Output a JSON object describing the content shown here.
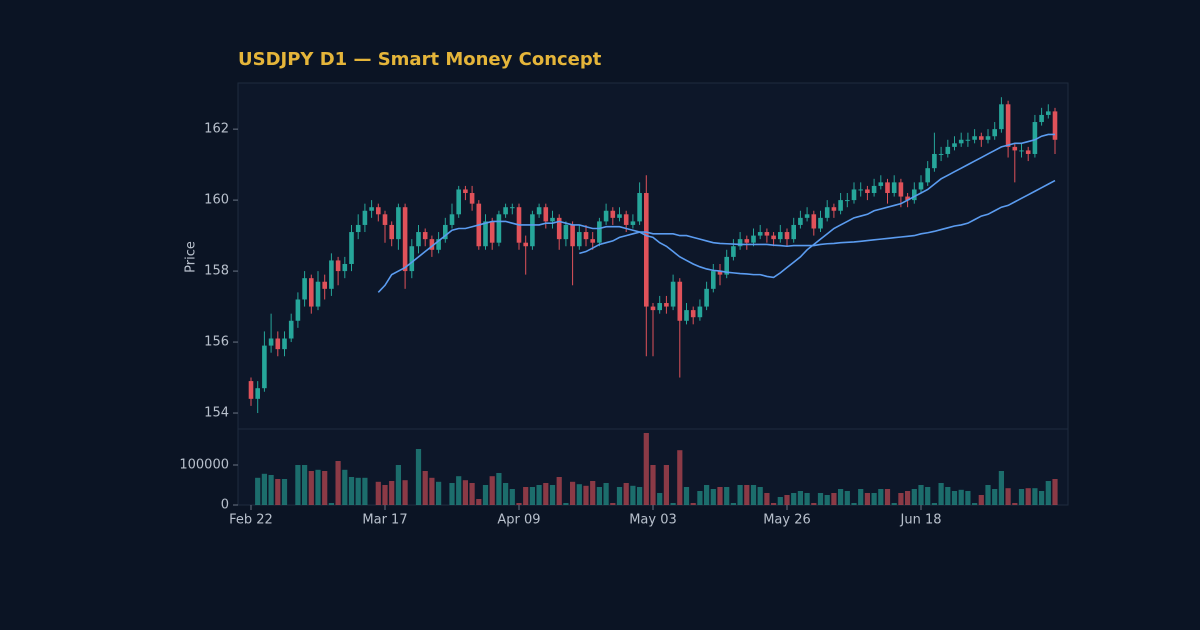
{
  "chart_data": {
    "type": "candlestick",
    "title": "USDJPY D1 — Smart Money Concept",
    "ylabel": "Price",
    "up_color": "#26a69a",
    "down_color": "#e0525a",
    "categories": [
      "Feb 22",
      null,
      null,
      null,
      null,
      null,
      null,
      null,
      null,
      null,
      null,
      null,
      null,
      null,
      null,
      null,
      null,
      null,
      null,
      null,
      "Mar 17",
      null,
      null,
      null,
      null,
      null,
      null,
      null,
      null,
      null,
      null,
      null,
      null,
      null,
      null,
      null,
      null,
      null,
      null,
      null,
      "Apr 09",
      null,
      null,
      null,
      null,
      null,
      null,
      null,
      null,
      null,
      null,
      null,
      null,
      null,
      null,
      null,
      null,
      null,
      null,
      null,
      "May 03",
      null,
      null,
      null,
      null,
      null,
      null,
      null,
      null,
      null,
      null,
      null,
      null,
      null,
      null,
      null,
      null,
      null,
      null,
      null,
      "May 26",
      null,
      null,
      null,
      null,
      null,
      null,
      null,
      null,
      null,
      null,
      null,
      null,
      null,
      null,
      null,
      null,
      null,
      null,
      null,
      "Jun 18",
      null,
      null,
      null,
      null,
      null,
      null,
      null,
      null,
      null,
      null,
      null,
      null,
      null,
      null,
      null,
      null,
      null,
      null,
      null,
      null
    ],
    "open": [
      154.9,
      154.4,
      154.7,
      155.9,
      156.1,
      155.8,
      156.1,
      156.6,
      157.2,
      157.8,
      157.0,
      157.7,
      157.5,
      158.3,
      158.0,
      158.2,
      159.1,
      159.3,
      159.7,
      159.8,
      159.6,
      159.3,
      158.9,
      159.8,
      158.0,
      158.7,
      159.1,
      158.9,
      158.6,
      158.9,
      159.3,
      159.6,
      160.3,
      160.2,
      159.9,
      158.7,
      159.4,
      158.8,
      159.6,
      159.8,
      159.8,
      158.8,
      158.7,
      159.6,
      159.8,
      159.4,
      159.5,
      158.9,
      159.3,
      158.7,
      159.1,
      158.9,
      158.8,
      159.4,
      159.7,
      159.5,
      159.6,
      159.3,
      159.4,
      160.2,
      157.0,
      156.9,
      157.1,
      157.0,
      157.7,
      156.6,
      156.9,
      156.7,
      157.0,
      157.5,
      158.0,
      157.9,
      158.4,
      158.7,
      158.9,
      158.8,
      159.0,
      159.1,
      159.0,
      158.9,
      159.1,
      158.9,
      159.3,
      159.5,
      159.6,
      159.2,
      159.5,
      159.8,
      159.7,
      160.0,
      160.0,
      160.3,
      160.3,
      160.2,
      160.4,
      160.5,
      160.2,
      160.5,
      160.1,
      160.0,
      160.3,
      160.5,
      160.9,
      161.3,
      161.3,
      161.5,
      161.6,
      161.7,
      161.7,
      161.8,
      161.7,
      161.8,
      162.0,
      162.7,
      161.5,
      161.4,
      161.4,
      161.3,
      162.2,
      162.4,
      162.5
    ],
    "high": [
      155.0,
      154.9,
      156.3,
      156.8,
      156.3,
      156.3,
      156.8,
      157.4,
      158.0,
      157.9,
      158.0,
      157.9,
      158.5,
      158.4,
      158.4,
      159.3,
      159.6,
      159.9,
      160.0,
      159.9,
      159.7,
      159.4,
      159.9,
      159.9,
      158.9,
      159.3,
      159.2,
      159.0,
      159.1,
      159.5,
      159.9,
      160.4,
      160.4,
      160.4,
      160.0,
      159.6,
      159.5,
      159.7,
      159.9,
      159.9,
      159.9,
      159.0,
      159.7,
      159.9,
      159.9,
      159.7,
      159.6,
      159.4,
      159.4,
      159.3,
      159.3,
      159.1,
      159.5,
      159.9,
      159.8,
      159.8,
      159.7,
      159.6,
      160.5,
      160.7,
      157.1,
      157.3,
      157.3,
      157.9,
      157.8,
      157.1,
      157.0,
      157.2,
      157.7,
      158.2,
      158.2,
      158.6,
      158.9,
      159.1,
      159.0,
      159.2,
      159.3,
      159.2,
      159.1,
      159.3,
      159.2,
      159.5,
      159.7,
      159.8,
      159.7,
      159.7,
      160.0,
      159.9,
      160.2,
      160.2,
      160.5,
      160.5,
      160.4,
      160.6,
      160.7,
      160.6,
      160.7,
      160.6,
      160.2,
      160.5,
      160.7,
      161.1,
      161.9,
      161.5,
      161.7,
      161.8,
      161.9,
      161.9,
      162.0,
      161.9,
      162.0,
      162.2,
      162.9,
      162.8,
      161.6,
      161.6,
      161.5,
      162.4,
      162.6,
      162.7,
      162.6
    ],
    "low": [
      154.2,
      154.0,
      154.6,
      155.7,
      155.6,
      155.6,
      156.0,
      156.4,
      157.0,
      156.8,
      156.9,
      157.2,
      157.3,
      157.6,
      157.8,
      158.0,
      158.9,
      159.1,
      159.5,
      159.4,
      158.8,
      158.7,
      158.6,
      157.5,
      157.8,
      158.5,
      158.7,
      158.4,
      158.5,
      158.8,
      159.2,
      159.5,
      160.0,
      159.7,
      158.6,
      158.6,
      158.6,
      158.7,
      159.5,
      159.6,
      158.6,
      157.9,
      158.6,
      159.5,
      159.2,
      159.2,
      158.6,
      158.7,
      157.6,
      158.6,
      158.7,
      158.6,
      158.7,
      159.3,
      159.3,
      159.4,
      159.1,
      159.2,
      159.3,
      155.6,
      155.6,
      156.8,
      156.8,
      156.9,
      155.0,
      156.5,
      156.5,
      156.6,
      156.9,
      157.4,
      157.6,
      157.8,
      158.3,
      158.6,
      158.6,
      158.7,
      158.9,
      158.8,
      158.7,
      158.8,
      158.7,
      158.8,
      159.2,
      159.4,
      159.0,
      159.1,
      159.4,
      159.5,
      159.6,
      159.8,
      159.9,
      160.1,
      160.0,
      160.1,
      160.3,
      159.9,
      160.1,
      159.8,
      159.8,
      159.9,
      160.2,
      160.4,
      160.8,
      161.1,
      161.2,
      161.4,
      161.5,
      161.5,
      161.6,
      161.5,
      161.6,
      161.7,
      161.9,
      161.2,
      160.5,
      161.2,
      161.1,
      161.2,
      162.1,
      162.3,
      161.3
    ],
    "close": [
      154.4,
      154.7,
      155.9,
      156.1,
      155.8,
      156.1,
      156.6,
      157.2,
      157.8,
      157.0,
      157.7,
      157.5,
      158.3,
      158.0,
      158.2,
      159.1,
      159.3,
      159.7,
      159.8,
      159.6,
      159.3,
      158.9,
      159.8,
      158.0,
      158.7,
      159.1,
      158.9,
      158.6,
      158.9,
      159.3,
      159.6,
      160.3,
      160.2,
      159.9,
      158.7,
      159.4,
      158.8,
      159.6,
      159.8,
      159.8,
      158.8,
      158.7,
      159.6,
      159.8,
      159.4,
      159.5,
      158.9,
      159.3,
      158.7,
      159.1,
      158.9,
      158.8,
      159.4,
      159.7,
      159.5,
      159.6,
      159.3,
      159.4,
      160.2,
      157.0,
      156.9,
      157.1,
      157.0,
      157.7,
      156.6,
      156.9,
      156.7,
      157.0,
      157.5,
      158.0,
      157.9,
      158.4,
      158.7,
      158.9,
      158.8,
      159.0,
      159.1,
      159.0,
      158.9,
      159.1,
      158.9,
      159.3,
      159.5,
      159.6,
      159.2,
      159.5,
      159.8,
      159.7,
      160.0,
      160.0,
      160.3,
      160.3,
      160.2,
      160.4,
      160.5,
      160.2,
      160.5,
      160.1,
      160.0,
      160.3,
      160.5,
      160.9,
      161.3,
      161.3,
      161.5,
      161.6,
      161.7,
      161.7,
      161.8,
      161.7,
      161.8,
      162.0,
      162.7,
      161.5,
      161.4,
      161.4,
      161.3,
      162.2,
      162.4,
      162.5,
      161.7
    ],
    "series": [
      {
        "color": "#5b9cf0",
        "values": [
          null,
          null,
          null,
          null,
          null,
          null,
          null,
          null,
          null,
          null,
          null,
          null,
          null,
          null,
          null,
          null,
          null,
          null,
          null,
          157.4,
          157.6,
          157.9,
          158.0,
          158.1,
          158.25,
          158.4,
          158.55,
          158.7,
          158.85,
          159.0,
          159.15,
          159.2,
          159.2,
          159.25,
          159.3,
          159.35,
          159.4,
          159.4,
          159.4,
          159.35,
          159.3,
          159.3,
          159.3,
          159.3,
          159.35,
          159.35,
          159.4,
          159.35,
          159.3,
          159.3,
          159.25,
          159.2,
          159.2,
          159.25,
          159.25,
          159.25,
          159.2,
          159.15,
          159.1,
          159.0,
          158.95,
          158.8,
          158.7,
          158.55,
          158.4,
          158.3,
          158.2,
          158.12,
          158.06,
          158.02,
          158.0,
          157.97,
          157.95,
          157.93,
          157.92,
          157.9,
          157.9,
          157.85,
          157.82,
          157.95,
          158.1,
          158.25,
          158.4,
          158.6,
          158.75,
          158.9,
          159.05,
          159.2,
          159.3,
          159.4,
          159.5,
          159.55,
          159.6,
          159.7,
          159.75,
          159.8,
          159.85,
          159.9,
          160.0,
          160.1,
          160.2,
          160.3,
          160.45,
          160.6,
          160.7,
          160.8,
          160.9,
          161.0,
          161.1,
          161.2,
          161.3,
          161.4,
          161.5,
          161.55,
          161.6,
          161.6,
          161.65,
          161.7,
          161.8,
          161.85,
          161.85
        ]
      },
      {
        "color": "#5b9cf0",
        "values": [
          null,
          null,
          null,
          null,
          null,
          null,
          null,
          null,
          null,
          null,
          null,
          null,
          null,
          null,
          null,
          null,
          null,
          null,
          null,
          null,
          null,
          null,
          null,
          null,
          null,
          null,
          null,
          null,
          null,
          null,
          null,
          null,
          null,
          null,
          null,
          null,
          null,
          null,
          null,
          null,
          null,
          null,
          null,
          null,
          null,
          null,
          null,
          null,
          null,
          158.5,
          158.55,
          158.65,
          158.75,
          158.8,
          158.85,
          158.95,
          159.0,
          159.05,
          159.1,
          159.1,
          159.05,
          159.05,
          159.05,
          159.05,
          159.0,
          159.0,
          158.95,
          158.9,
          158.85,
          158.8,
          158.78,
          158.77,
          158.76,
          158.75,
          158.75,
          158.75,
          158.75,
          158.75,
          158.73,
          158.72,
          158.7,
          158.72,
          158.72,
          158.72,
          158.72,
          158.75,
          158.77,
          158.78,
          158.8,
          158.81,
          158.82,
          158.84,
          158.86,
          158.88,
          158.9,
          158.92,
          158.94,
          158.96,
          158.98,
          159.0,
          159.05,
          159.08,
          159.12,
          159.17,
          159.22,
          159.27,
          159.3,
          159.35,
          159.45,
          159.55,
          159.6,
          159.7,
          159.8,
          159.85,
          159.95,
          160.05,
          160.15,
          160.25,
          160.35,
          160.45,
          160.55
        ]
      }
    ],
    "ylim": [
      153.55,
      163.3
    ],
    "yticks": [
      154,
      156,
      158,
      160,
      162
    ],
    "volume": {
      "values": [
        0,
        68000,
        78000,
        75000,
        65000,
        65000,
        0,
        100000,
        100000,
        85000,
        88000,
        85000,
        5000,
        110000,
        88000,
        70000,
        68000,
        68000,
        0,
        58000,
        50000,
        60000,
        100000,
        62000,
        0,
        140000,
        85000,
        68000,
        58000,
        0,
        55000,
        72000,
        62000,
        55000,
        15000,
        50000,
        72000,
        80000,
        55000,
        40000,
        5000,
        45000,
        45000,
        50000,
        55000,
        50000,
        70000,
        5000,
        58000,
        52000,
        48000,
        60000,
        45000,
        55000,
        5000,
        45000,
        55000,
        48000,
        45000,
        180000,
        100000,
        30000,
        100000,
        5000,
        137000,
        45000,
        5000,
        35000,
        50000,
        40000,
        45000,
        45000,
        5000,
        50000,
        50000,
        50000,
        45000,
        30000,
        5000,
        20000,
        25000,
        30000,
        35000,
        30000,
        5000,
        30000,
        25000,
        30000,
        40000,
        35000,
        5000,
        40000,
        30000,
        30000,
        40000,
        40000,
        5000,
        30000,
        35000,
        40000,
        50000,
        45000,
        5000,
        55000,
        45000,
        35000,
        38000,
        35000,
        5000,
        25000,
        50000,
        40000,
        85000,
        42000,
        5000,
        40000,
        42000,
        42000,
        35000,
        60000,
        65000
      ],
      "ylim": [
        0,
        190000
      ],
      "yticks": [
        0,
        100000
      ]
    }
  }
}
